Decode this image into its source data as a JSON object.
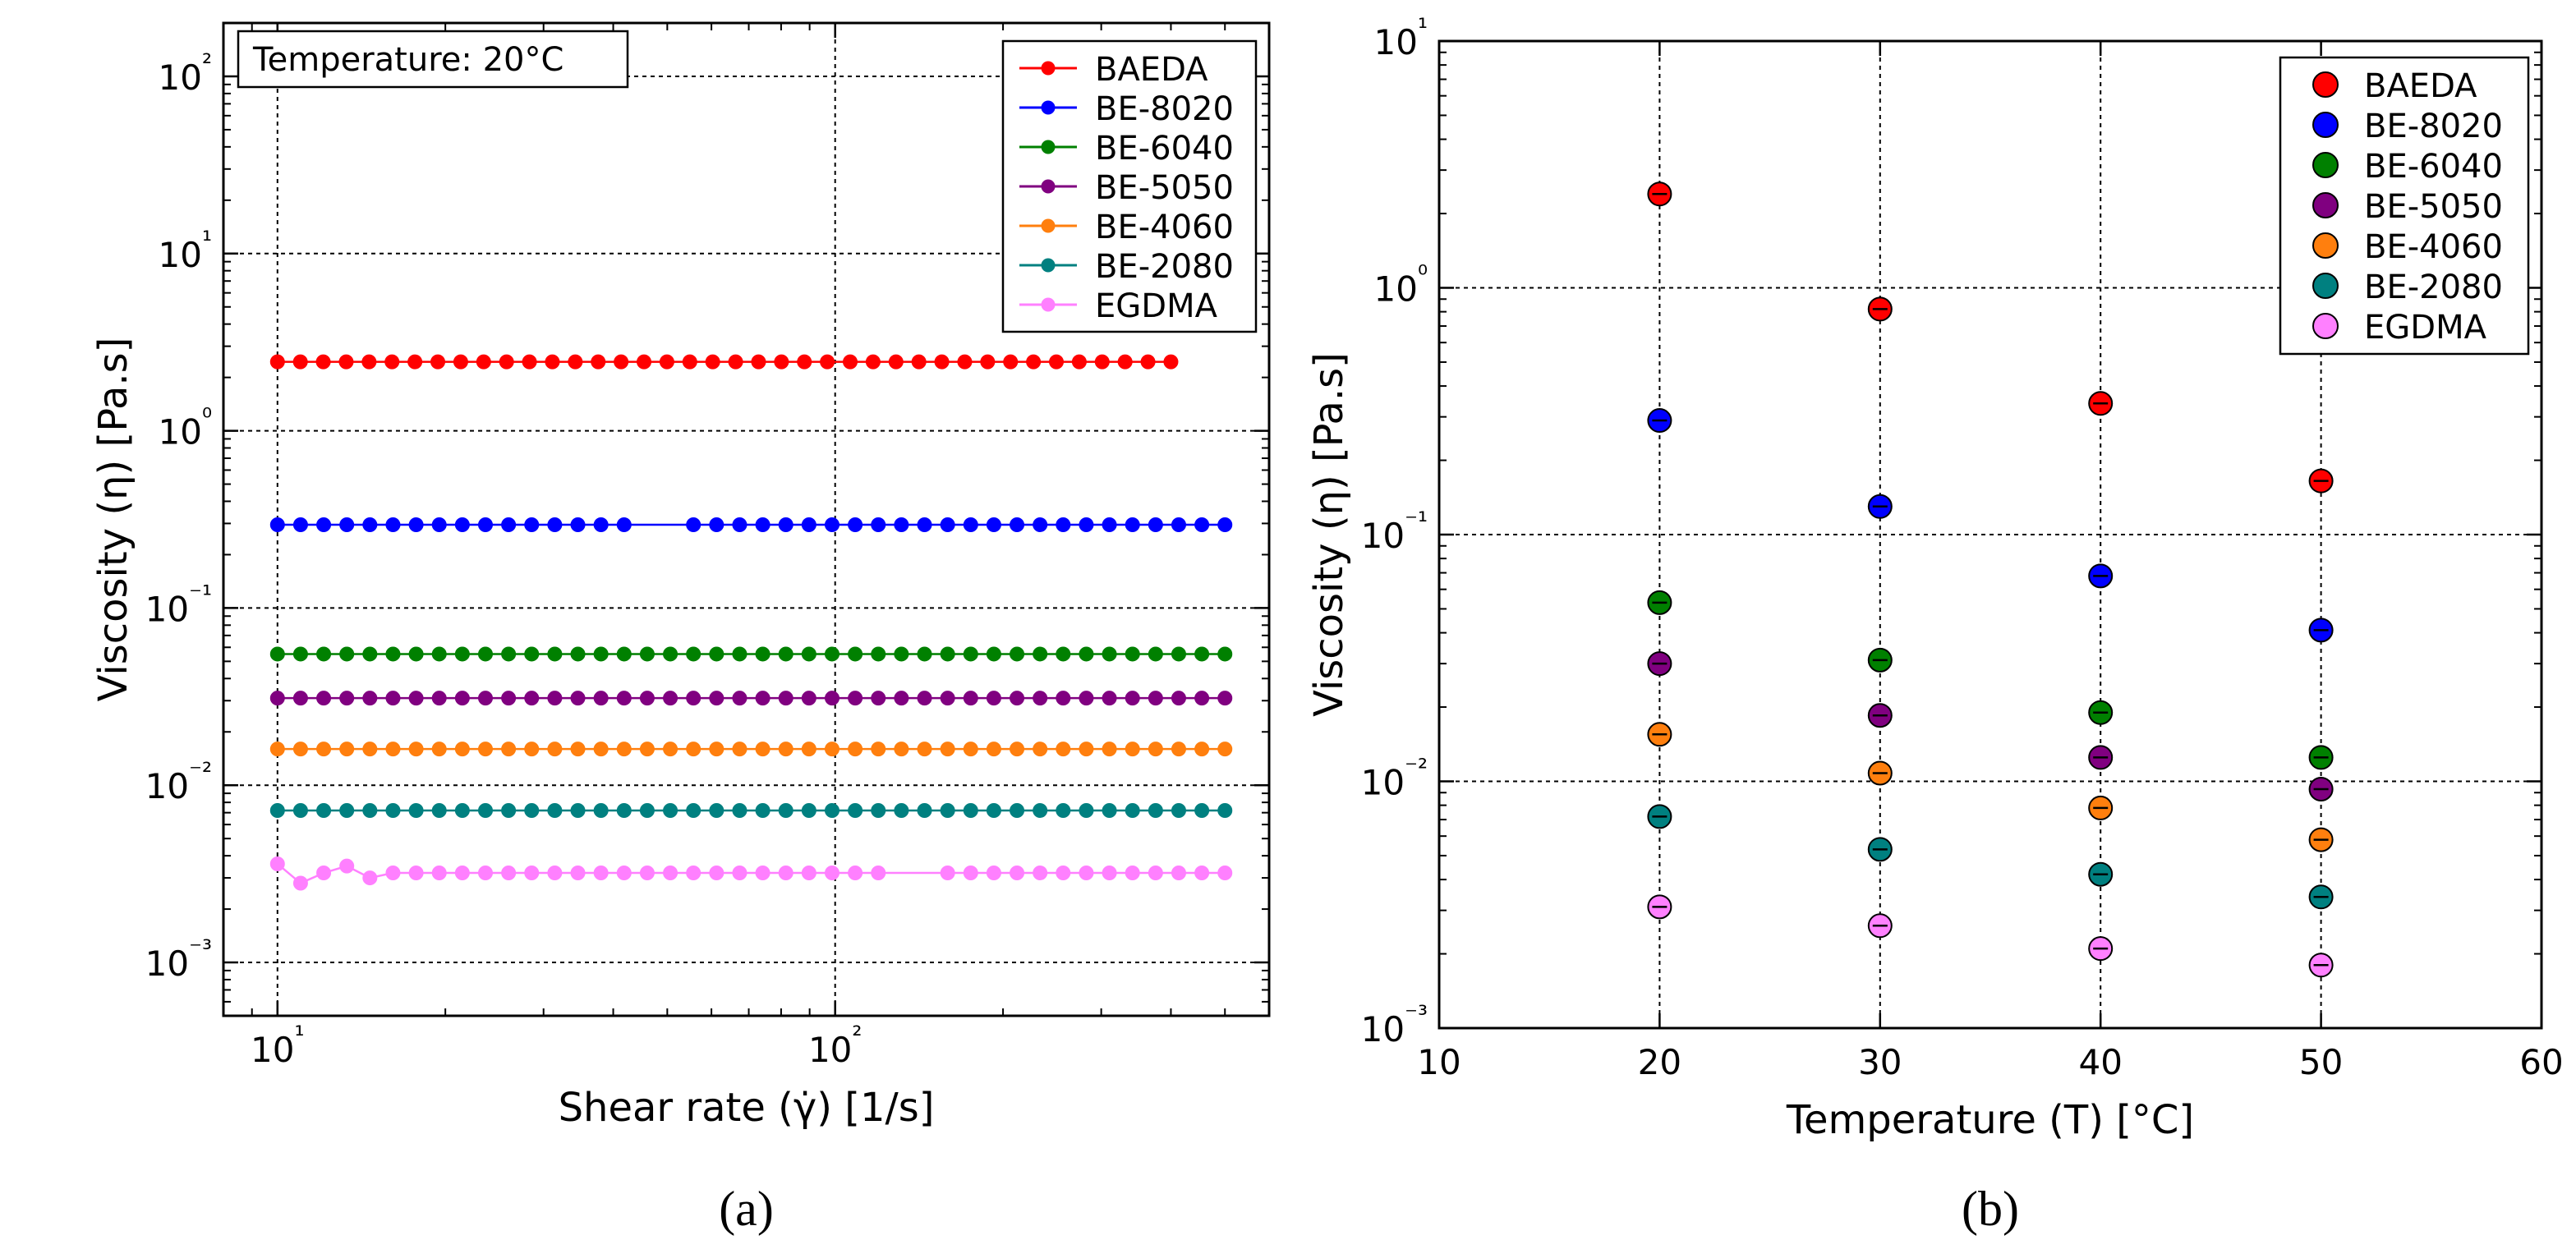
{
  "chart_data": [
    {
      "type": "line",
      "panel": "a",
      "caption": "(a)",
      "title": "",
      "annotation": "Temperature: 20°C",
      "xlabel": "Shear rate (γ̇) [1/s]",
      "ylabel": "Viscosity (η) [Pa.s]",
      "xscale": "log",
      "yscale": "log",
      "xlim": [
        8,
        600
      ],
      "ylim": [
        0.0005,
        200
      ],
      "x_ticks": [
        10,
        100
      ],
      "x_tick_labels": [
        "10¹",
        "10²"
      ],
      "y_ticks": [
        0.001,
        0.01,
        0.1,
        1,
        10,
        100
      ],
      "y_tick_labels": [
        "10⁻³",
        "10⁻²",
        "10⁻¹",
        "10⁰",
        "10¹",
        "10²"
      ],
      "grid": true,
      "legend_position": "top-right",
      "series": [
        {
          "name": "BAEDA",
          "color": "#ff0000",
          "x_start": 10,
          "x_end": 400,
          "n_points": 40,
          "value": 2.45,
          "gap": null,
          "wobble": null
        },
        {
          "name": "BE-8020",
          "color": "#0000ff",
          "x_start": 10,
          "x_end": 500,
          "n_points": 42,
          "value": 0.295,
          "gap": [
            45,
            52
          ],
          "wobble": null
        },
        {
          "name": "BE-6040",
          "color": "#008000",
          "x_start": 10,
          "x_end": 500,
          "n_points": 42,
          "value": 0.055,
          "gap": null,
          "wobble": null
        },
        {
          "name": "BE-5050",
          "color": "#800080",
          "x_start": 10,
          "x_end": 500,
          "n_points": 42,
          "value": 0.031,
          "gap": null,
          "wobble": null
        },
        {
          "name": "BE-4060",
          "color": "#ff7f0e",
          "x_start": 10,
          "x_end": 500,
          "n_points": 42,
          "value": 0.016,
          "gap": null,
          "wobble": null
        },
        {
          "name": "BE-2080",
          "color": "#008080",
          "x_start": 10,
          "x_end": 500,
          "n_points": 42,
          "value": 0.0072,
          "gap": null,
          "wobble": null
        },
        {
          "name": "EGDMA",
          "color": "#ff80ff",
          "x_start": 10,
          "x_end": 500,
          "n_points": 42,
          "value": 0.0032,
          "gap": [
            130,
            155
          ],
          "wobble": [
            0.0036,
            0.0028,
            0.0032,
            0.0035,
            0.003
          ]
        }
      ]
    },
    {
      "type": "scatter",
      "panel": "b",
      "caption": "(b)",
      "title": "",
      "xlabel": "Temperature (T) [°C]",
      "ylabel": "Viscosity (η) [Pa.s]",
      "xscale": "linear",
      "yscale": "log",
      "xlim": [
        10,
        60
      ],
      "ylim": [
        0.001,
        10
      ],
      "x_ticks": [
        10,
        20,
        30,
        40,
        50,
        60
      ],
      "x_tick_labels": [
        "10",
        "20",
        "30",
        "40",
        "50",
        "60"
      ],
      "y_ticks": [
        0.001,
        0.01,
        0.1,
        1,
        10
      ],
      "y_tick_labels": [
        "10⁻³",
        "10⁻²",
        "10⁻¹",
        "10⁰",
        "10¹"
      ],
      "grid": true,
      "legend_position": "top-right",
      "x": [
        20,
        30,
        40,
        50
      ],
      "series": [
        {
          "name": "BAEDA",
          "color": "#ff0000",
          "values": [
            2.4,
            0.82,
            0.34,
            0.165
          ]
        },
        {
          "name": "BE-8020",
          "color": "#0000ff",
          "values": [
            0.29,
            0.13,
            0.068,
            0.041
          ]
        },
        {
          "name": "BE-6040",
          "color": "#008000",
          "values": [
            0.053,
            0.031,
            0.019,
            0.0125
          ]
        },
        {
          "name": "BE-5050",
          "color": "#800080",
          "values": [
            0.03,
            0.0185,
            0.0125,
            0.0093
          ]
        },
        {
          "name": "BE-4060",
          "color": "#ff7f0e",
          "values": [
            0.0155,
            0.0108,
            0.0078,
            0.0058
          ]
        },
        {
          "name": "BE-2080",
          "color": "#008080",
          "values": [
            0.0072,
            0.0053,
            0.0042,
            0.0034
          ]
        },
        {
          "name": "EGDMA",
          "color": "#ff80ff",
          "values": [
            0.0031,
            0.0026,
            0.0021,
            0.0018
          ]
        }
      ]
    }
  ]
}
